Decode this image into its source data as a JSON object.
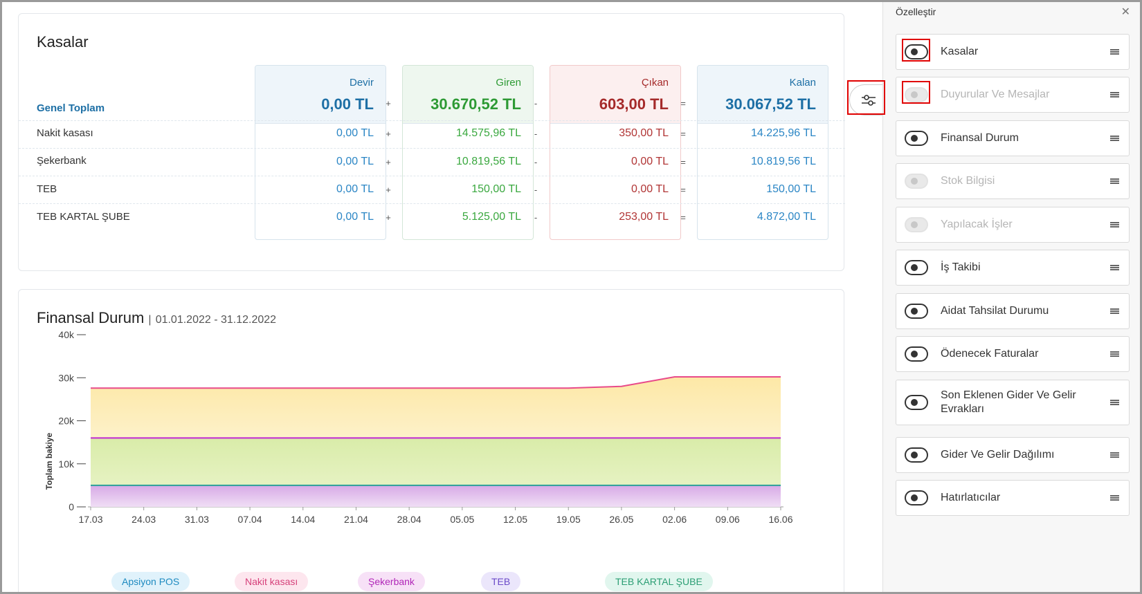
{
  "kasalar": {
    "title": "Kasalar",
    "genel_label": "Genel Toplam",
    "columns": [
      {
        "label": "Devir",
        "total": "0,00 TL"
      },
      {
        "label": "Giren",
        "total": "30.670,52 TL"
      },
      {
        "label": "Çıkan",
        "total": "603,00 TL"
      },
      {
        "label": "Kalan",
        "total": "30.067,52 TL"
      }
    ],
    "operators": [
      "+",
      "-",
      "="
    ],
    "rows": [
      {
        "name": "Nakit kasası",
        "devir": "0,00 TL",
        "giren": "14.575,96 TL",
        "cikan": "350,00 TL",
        "kalan": "14.225,96 TL"
      },
      {
        "name": "Şekerbank",
        "devir": "0,00 TL",
        "giren": "10.819,56 TL",
        "cikan": "0,00 TL",
        "kalan": "10.819,56 TL"
      },
      {
        "name": "TEB",
        "devir": "0,00 TL",
        "giren": "150,00 TL",
        "cikan": "0,00 TL",
        "kalan": "150,00 TL"
      },
      {
        "name": "TEB KARTAL ŞUBE",
        "devir": "0,00 TL",
        "giren": "5.125,00 TL",
        "cikan": "253,00 TL",
        "kalan": "4.872,00 TL"
      }
    ]
  },
  "finansal": {
    "title": "Finansal Durum",
    "separator": "|",
    "date_range": "01.01.2022 - 31.12.2022"
  },
  "chart_data": {
    "type": "area",
    "ylabel": "Toplam bakiye",
    "ylim": [
      0,
      40000
    ],
    "yticks": [
      "0",
      "10k",
      "20k",
      "30k",
      "40k"
    ],
    "x": [
      "17.03",
      "24.03",
      "31.03",
      "07.04",
      "14.04",
      "21.04",
      "28.04",
      "05.05",
      "12.05",
      "19.05",
      "26.05",
      "02.06",
      "09.06",
      "16.06"
    ],
    "series": [
      {
        "name": "TEB KARTAL ŞUBE",
        "color": "#2aa198",
        "values": [
          5000,
          5000,
          5000,
          5000,
          5000,
          5000,
          5000,
          5000,
          5000,
          5000,
          5000,
          5000,
          5000,
          5000
        ]
      },
      {
        "name": "Şekerbank",
        "color": "#c026d3",
        "values": [
          16000,
          16000,
          16000,
          16000,
          16000,
          16000,
          16000,
          16000,
          16000,
          16000,
          16000,
          16000,
          16000,
          16000
        ]
      },
      {
        "name": "Nakit kasası",
        "color": "#e84a8a",
        "values": [
          27600,
          27600,
          27600,
          27600,
          27600,
          27600,
          27600,
          27600,
          27600,
          27600,
          28000,
          30200,
          30200,
          30200
        ]
      }
    ],
    "legend": [
      {
        "name": "Apsiyon POS",
        "bg": "#e0f2fb",
        "fg": "#1d8ac0"
      },
      {
        "name": "Nakit kasası",
        "bg": "#fde6ee",
        "fg": "#d6407a"
      },
      {
        "name": "Şekerbank",
        "bg": "#f7e1f7",
        "fg": "#b026b8"
      },
      {
        "name": "TEB",
        "bg": "#ebe6fb",
        "fg": "#6b4ac8"
      },
      {
        "name": "TEB KARTAL ŞUBE",
        "bg": "#e1f6ee",
        "fg": "#2b9e74"
      }
    ]
  },
  "side_panel": {
    "title": "Özelleştir",
    "close": "✕",
    "items": [
      {
        "label": "Kasalar",
        "on": true
      },
      {
        "label": "Duyurular Ve Mesajlar",
        "on": false
      },
      {
        "label": "Finansal Durum",
        "on": true
      },
      {
        "label": "Stok Bilgisi",
        "on": false
      },
      {
        "label": "Yapılacak İşler",
        "on": false
      },
      {
        "label": "İş Takibi",
        "on": true
      },
      {
        "label": "Aidat Tahsilat Durumu",
        "on": true
      },
      {
        "label": "Ödenecek Faturalar",
        "on": true
      },
      {
        "label": "Son Eklenen Gider Ve Gelir Evrakları",
        "on": true
      },
      {
        "label": "Gider Ve Gelir Dağılımı",
        "on": true
      },
      {
        "label": "Hatırlatıcılar",
        "on": true
      }
    ]
  }
}
